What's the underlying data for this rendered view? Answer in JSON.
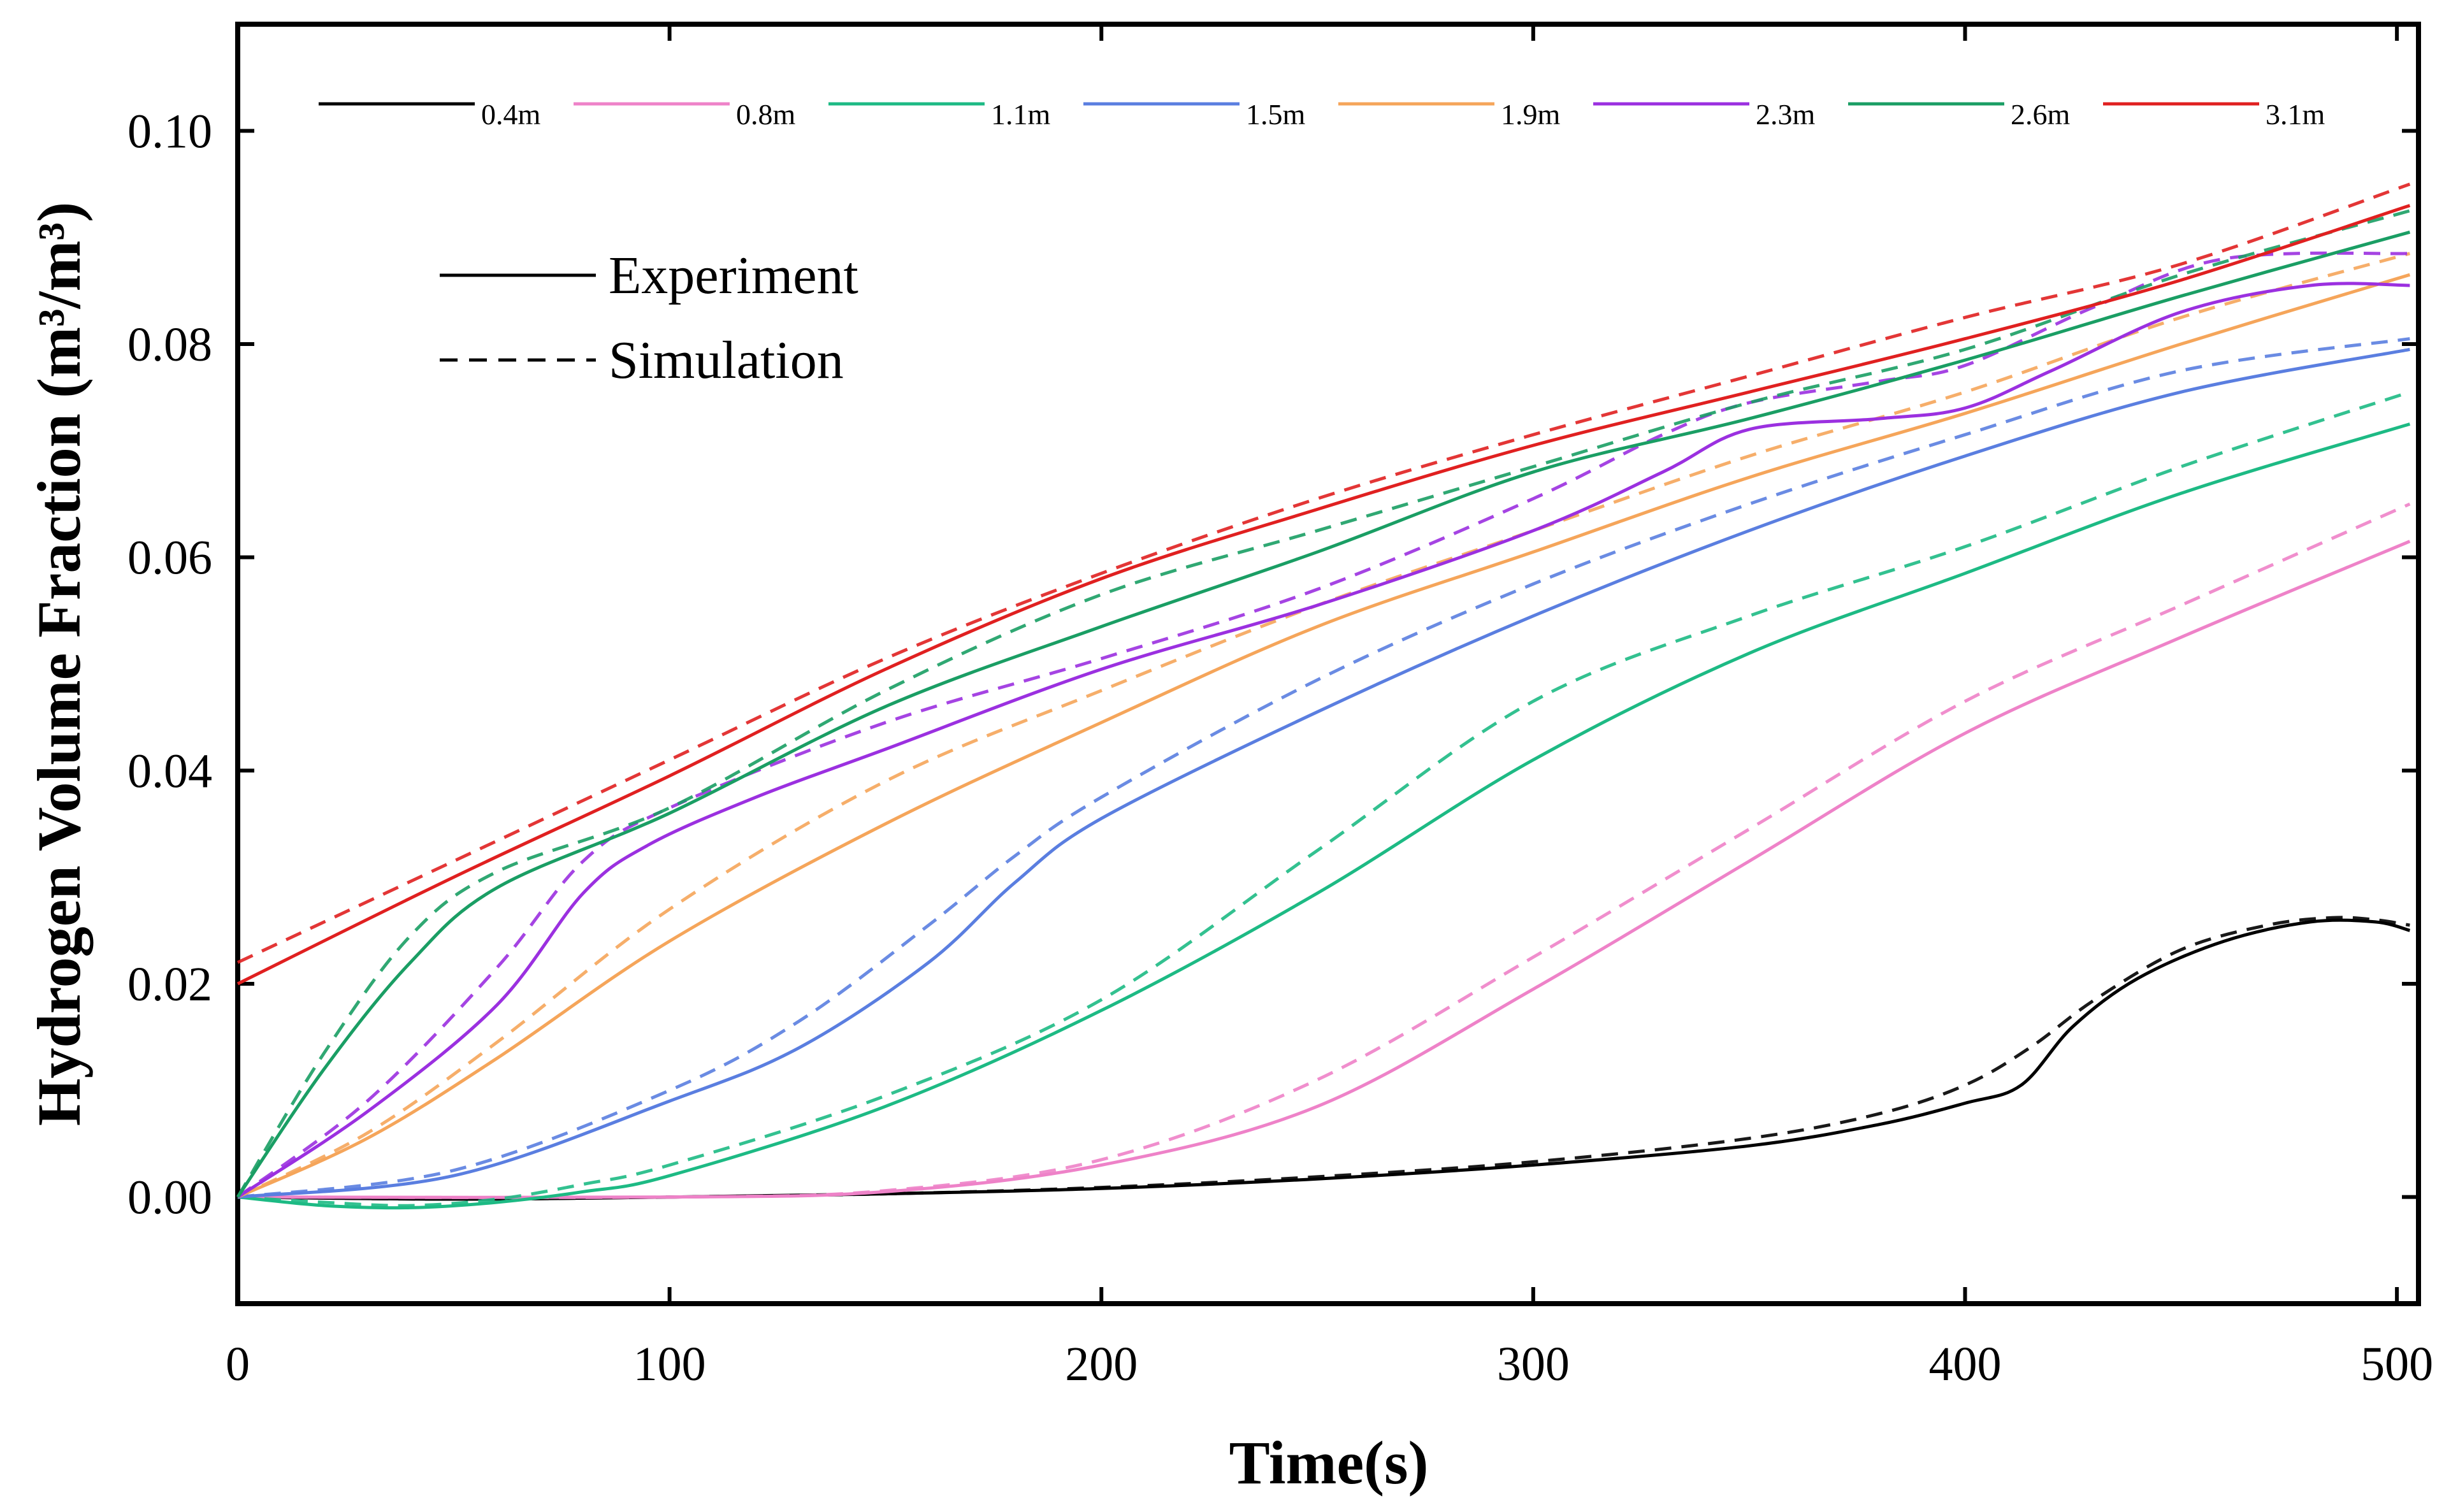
{
  "chart_data": {
    "type": "line",
    "title": "",
    "xlabel": "Time(s)",
    "ylabel": "Hydrogen Volume Fraction (m³/m³)",
    "xlim": [
      0,
      505
    ],
    "ylim": [
      -0.01,
      0.11
    ],
    "xticks": [
      0,
      100,
      200,
      300,
      400,
      500
    ],
    "xtick_labels": [
      "0",
      "100",
      "200",
      "300",
      "400",
      "500"
    ],
    "yticks": [
      0.0,
      0.02,
      0.04,
      0.06,
      0.08,
      0.1
    ],
    "ytick_labels": [
      "0.00",
      "0.02",
      "0.04",
      "0.06",
      "0.08",
      "0.10"
    ],
    "grid": false,
    "legend_position": "top",
    "style_legend": [
      {
        "label": "Experiment",
        "dash": "solid"
      },
      {
        "label": "Simulation",
        "dash": "dashed"
      }
    ],
    "series": [
      {
        "name": "0.4m",
        "color": "#000000",
        "experiment": [
          [
            0,
            0
          ],
          [
            50,
            -0.0002
          ],
          [
            100,
            0
          ],
          [
            150,
            0.0003
          ],
          [
            200,
            0.0008
          ],
          [
            250,
            0.0017
          ],
          [
            300,
            0.003
          ],
          [
            350,
            0.0048
          ],
          [
            380,
            0.0068
          ],
          [
            400,
            0.0088
          ],
          [
            413,
            0.0105
          ],
          [
            425,
            0.016
          ],
          [
            440,
            0.0205
          ],
          [
            460,
            0.024
          ],
          [
            480,
            0.0258
          ],
          [
            495,
            0.0258
          ],
          [
            503,
            0.025
          ]
        ],
        "simulation": [
          [
            0,
            0
          ],
          [
            50,
            -0.0002
          ],
          [
            100,
            0
          ],
          [
            150,
            0.0003
          ],
          [
            200,
            0.0009
          ],
          [
            250,
            0.0019
          ],
          [
            300,
            0.0033
          ],
          [
            350,
            0.0055
          ],
          [
            380,
            0.0078
          ],
          [
            400,
            0.0105
          ],
          [
            415,
            0.014
          ],
          [
            430,
            0.0185
          ],
          [
            450,
            0.0232
          ],
          [
            470,
            0.0255
          ],
          [
            485,
            0.0262
          ],
          [
            495,
            0.026
          ],
          [
            503,
            0.0255
          ]
        ],
        "exp_dash": "solid",
        "sim_dash": "dashed"
      },
      {
        "name": "0.8m",
        "color": "#ee82c8",
        "experiment": [
          [
            0,
            0
          ],
          [
            100,
            0
          ],
          [
            150,
            0.0005
          ],
          [
            200,
            0.003
          ],
          [
            250,
            0.0085
          ],
          [
            300,
            0.0195
          ],
          [
            350,
            0.0315
          ],
          [
            400,
            0.0435
          ],
          [
            450,
            0.0525
          ],
          [
            503,
            0.0615
          ]
        ],
        "simulation": [
          [
            0,
            0
          ],
          [
            100,
            0
          ],
          [
            150,
            0.0006
          ],
          [
            200,
            0.0035
          ],
          [
            250,
            0.011
          ],
          [
            300,
            0.0225
          ],
          [
            350,
            0.0345
          ],
          [
            400,
            0.0465
          ],
          [
            450,
            0.0555
          ],
          [
            503,
            0.065
          ]
        ],
        "exp_dash": "solid",
        "sim_dash": "dashed"
      },
      {
        "name": "1.1m",
        "color": "#1dba84",
        "experiment": [
          [
            0,
            0
          ],
          [
            20,
            -0.0008
          ],
          [
            40,
            -0.001
          ],
          [
            60,
            -0.0005
          ],
          [
            80,
            0.0005
          ],
          [
            100,
            0.002
          ],
          [
            150,
            0.0085
          ],
          [
            200,
            0.0175
          ],
          [
            250,
            0.0285
          ],
          [
            300,
            0.041
          ],
          [
            350,
            0.051
          ],
          [
            400,
            0.0585
          ],
          [
            450,
            0.066
          ],
          [
            503,
            0.0725
          ]
        ],
        "simulation": [
          [
            0,
            0
          ],
          [
            20,
            -0.0005
          ],
          [
            40,
            -0.0008
          ],
          [
            60,
            -0.0002
          ],
          [
            80,
            0.0012
          ],
          [
            100,
            0.003
          ],
          [
            150,
            0.0095
          ],
          [
            200,
            0.0185
          ],
          [
            250,
            0.0325
          ],
          [
            300,
            0.0465
          ],
          [
            350,
            0.0545
          ],
          [
            400,
            0.061
          ],
          [
            450,
            0.0685
          ],
          [
            503,
            0.0755
          ]
        ],
        "exp_dash": "solid",
        "sim_dash": "dashed"
      },
      {
        "name": "1.5m",
        "color": "#5a7ee0",
        "experiment": [
          [
            0,
            0
          ],
          [
            50,
            0.002
          ],
          [
            100,
            0.009
          ],
          [
            130,
            0.014
          ],
          [
            160,
            0.022
          ],
          [
            180,
            0.0295
          ],
          [
            200,
            0.0355
          ],
          [
            250,
            0.0455
          ],
          [
            300,
            0.0545
          ],
          [
            350,
            0.0625
          ],
          [
            400,
            0.0695
          ],
          [
            450,
            0.0755
          ],
          [
            503,
            0.0795
          ]
        ],
        "simulation": [
          [
            0,
            0
          ],
          [
            50,
            0.0025
          ],
          [
            100,
            0.01
          ],
          [
            130,
            0.0165
          ],
          [
            160,
            0.0255
          ],
          [
            180,
            0.032
          ],
          [
            200,
            0.0375
          ],
          [
            250,
            0.0485
          ],
          [
            300,
            0.0575
          ],
          [
            350,
            0.065
          ],
          [
            400,
            0.0715
          ],
          [
            450,
            0.0775
          ],
          [
            503,
            0.0805
          ]
        ],
        "exp_dash": "solid",
        "sim_dash": "dashed"
      },
      {
        "name": "1.9m",
        "color": "#f5a55a",
        "experiment": [
          [
            0,
            0
          ],
          [
            30,
            0.0055
          ],
          [
            60,
            0.013
          ],
          [
            100,
            0.024
          ],
          [
            150,
            0.035
          ],
          [
            200,
            0.0445
          ],
          [
            250,
            0.0535
          ],
          [
            300,
            0.0605
          ],
          [
            350,
            0.0675
          ],
          [
            400,
            0.0735
          ],
          [
            450,
            0.08
          ],
          [
            503,
            0.0865
          ]
        ],
        "simulation": [
          [
            0,
            0
          ],
          [
            30,
            0.006
          ],
          [
            60,
            0.0145
          ],
          [
            100,
            0.027
          ],
          [
            150,
            0.039
          ],
          [
            200,
            0.0475
          ],
          [
            250,
            0.0555
          ],
          [
            300,
            0.0625
          ],
          [
            350,
            0.0695
          ],
          [
            400,
            0.0755
          ],
          [
            450,
            0.0825
          ],
          [
            503,
            0.0885
          ]
        ],
        "exp_dash": "solid",
        "sim_dash": "dashed"
      },
      {
        "name": "2.3m",
        "color": "#9b30e0",
        "experiment": [
          [
            0,
            0
          ],
          [
            30,
            0.008
          ],
          [
            60,
            0.018
          ],
          [
            80,
            0.0285
          ],
          [
            95,
            0.033
          ],
          [
            120,
            0.0375
          ],
          [
            150,
            0.042
          ],
          [
            200,
            0.0495
          ],
          [
            250,
            0.0555
          ],
          [
            300,
            0.0625
          ],
          [
            330,
            0.068
          ],
          [
            350,
            0.072
          ],
          [
            380,
            0.073
          ],
          [
            400,
            0.074
          ],
          [
            420,
            0.0775
          ],
          [
            450,
            0.083
          ],
          [
            480,
            0.0855
          ],
          [
            503,
            0.0855
          ]
        ],
        "simulation": [
          [
            0,
            0
          ],
          [
            30,
            0.009
          ],
          [
            60,
            0.0215
          ],
          [
            80,
            0.0315
          ],
          [
            100,
            0.0365
          ],
          [
            150,
            0.0445
          ],
          [
            200,
            0.0505
          ],
          [
            250,
            0.057
          ],
          [
            300,
            0.0655
          ],
          [
            330,
            0.0715
          ],
          [
            350,
            0.0745
          ],
          [
            380,
            0.0765
          ],
          [
            400,
            0.078
          ],
          [
            430,
            0.0835
          ],
          [
            460,
            0.088
          ],
          [
            503,
            0.0885
          ]
        ],
        "exp_dash": "solid",
        "sim_dash": "dashed"
      },
      {
        "name": "2.6m",
        "color": "#1a9e64",
        "experiment": [
          [
            0,
            0
          ],
          [
            20,
            0.012
          ],
          [
            40,
            0.022
          ],
          [
            60,
            0.029
          ],
          [
            100,
            0.036
          ],
          [
            150,
            0.046
          ],
          [
            200,
            0.0535
          ],
          [
            250,
            0.0605
          ],
          [
            300,
            0.068
          ],
          [
            350,
            0.073
          ],
          [
            400,
            0.0785
          ],
          [
            450,
            0.0845
          ],
          [
            503,
            0.0905
          ]
        ],
        "simulation": [
          [
            0,
            0
          ],
          [
            20,
            0.0135
          ],
          [
            40,
            0.0245
          ],
          [
            60,
            0.0305
          ],
          [
            100,
            0.0365
          ],
          [
            150,
            0.0475
          ],
          [
            200,
            0.0565
          ],
          [
            250,
            0.0625
          ],
          [
            300,
            0.0685
          ],
          [
            350,
            0.0745
          ],
          [
            400,
            0.0795
          ],
          [
            450,
            0.0865
          ],
          [
            503,
            0.0925
          ]
        ],
        "exp_dash": "solid",
        "sim_dash": "dashed"
      },
      {
        "name": "3.1m",
        "color": "#e02020",
        "experiment": [
          [
            0,
            0.02
          ],
          [
            50,
            0.03
          ],
          [
            100,
            0.0395
          ],
          [
            150,
            0.0495
          ],
          [
            200,
            0.058
          ],
          [
            250,
            0.0645
          ],
          [
            300,
            0.0705
          ],
          [
            350,
            0.0755
          ],
          [
            400,
            0.0805
          ],
          [
            450,
            0.086
          ],
          [
            503,
            0.093
          ]
        ],
        "simulation": [
          [
            0,
            0.022
          ],
          [
            50,
            0.0315
          ],
          [
            100,
            0.041
          ],
          [
            150,
            0.0505
          ],
          [
            200,
            0.0585
          ],
          [
            250,
            0.0655
          ],
          [
            300,
            0.0715
          ],
          [
            350,
            0.077
          ],
          [
            400,
            0.0825
          ],
          [
            450,
            0.0875
          ],
          [
            503,
            0.095
          ]
        ],
        "exp_dash": "solid",
        "sim_dash": "dashed"
      }
    ]
  }
}
